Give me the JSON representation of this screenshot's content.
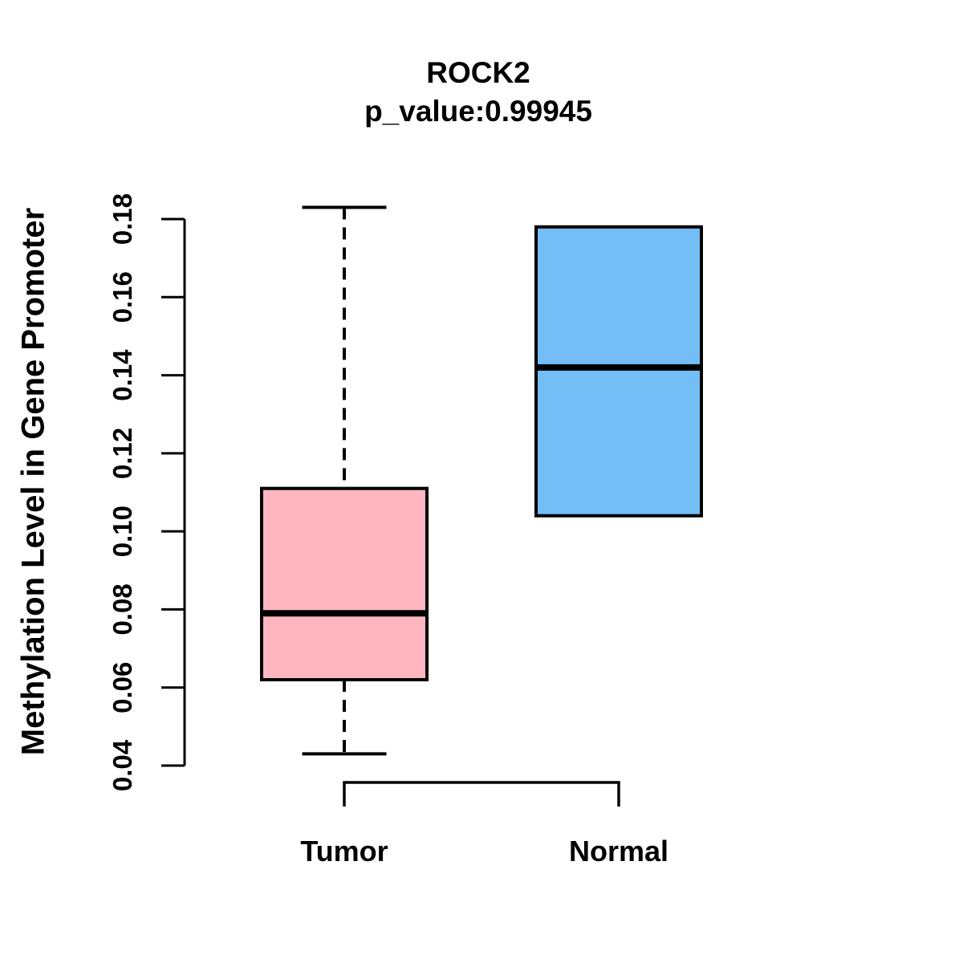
{
  "title": "ROCK2",
  "subtitle": "p_value:0.99945",
  "y_axis": {
    "label": "Methylation Level in Gene Promoter",
    "tick_labels": [
      "0.04",
      "0.06",
      "0.08",
      "0.10",
      "0.12",
      "0.14",
      "0.16",
      "0.18"
    ],
    "tick_values": [
      0.04,
      0.06,
      0.08,
      0.1,
      0.12,
      0.14,
      0.16,
      0.18
    ],
    "range": [
      0.04,
      0.18
    ]
  },
  "x_axis": {
    "categories": [
      "Tumor",
      "Normal"
    ]
  },
  "colors": {
    "tumor_fill": "#FFB6C1",
    "normal_fill": "#74BEF8",
    "line": "#000000",
    "background": "#ffffff"
  },
  "chart_data": {
    "type": "boxplot",
    "title": "ROCK2",
    "subtitle": "p_value:0.99945",
    "xlabel": "",
    "ylabel": "Methylation Level in Gene Promoter",
    "categories": [
      "Tumor",
      "Normal"
    ],
    "ylim": [
      0.04,
      0.18
    ],
    "grid": false,
    "legend_position": "none",
    "series": [
      {
        "name": "Tumor",
        "lower_whisker": 0.043,
        "q1": 0.062,
        "median": 0.079,
        "q3": 0.111,
        "upper_whisker": 0.183,
        "outliers": [],
        "whisker_style": "dashed",
        "color": "#FFB6C1"
      },
      {
        "name": "Normal",
        "lower_whisker": 0.104,
        "q1": 0.104,
        "median": 0.142,
        "q3": 0.178,
        "upper_whisker": 0.178,
        "outliers": [],
        "whisker_style": "dashed",
        "color": "#74BEF8"
      }
    ]
  }
}
